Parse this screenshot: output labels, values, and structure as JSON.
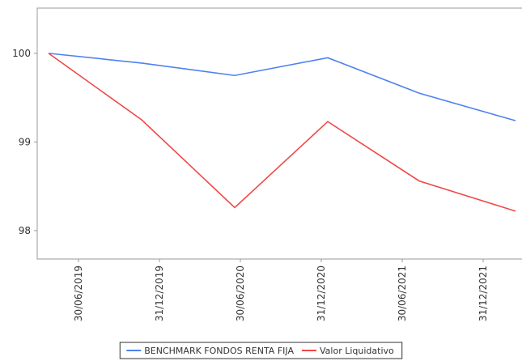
{
  "chart_data": {
    "type": "line",
    "x": [
      2019.315,
      2019.89,
      2020.465,
      2021.04,
      2021.605,
      2022.2
    ],
    "series": [
      {
        "name": "BENCHMARK FONDOS RENTA FIJA",
        "color": "#4f81f0",
        "values": [
          100,
          99.89,
          99.75,
          99.95,
          99.55,
          99.24
        ]
      },
      {
        "name": "Valor Liquidativo",
        "color": "#f04848",
        "values": [
          100,
          99.25,
          98.26,
          99.23,
          98.56,
          98.22
        ]
      }
    ],
    "xlim": [
      2019.245,
      2022.24
    ],
    "xticks": [
      {
        "value": 2019.5,
        "label": "30/06/2019"
      },
      {
        "value": 2020.0,
        "label": "31/12/2019"
      },
      {
        "value": 2020.5,
        "label": "30/06/2020"
      },
      {
        "value": 2021.0,
        "label": "31/12/2020"
      },
      {
        "value": 2021.5,
        "label": "30/06/2021"
      },
      {
        "value": 2022.0,
        "label": "31/12/2021"
      }
    ],
    "ylim": [
      97.68,
      100.51
    ],
    "yticks": [
      98,
      99,
      100
    ],
    "legend": "bottom"
  }
}
